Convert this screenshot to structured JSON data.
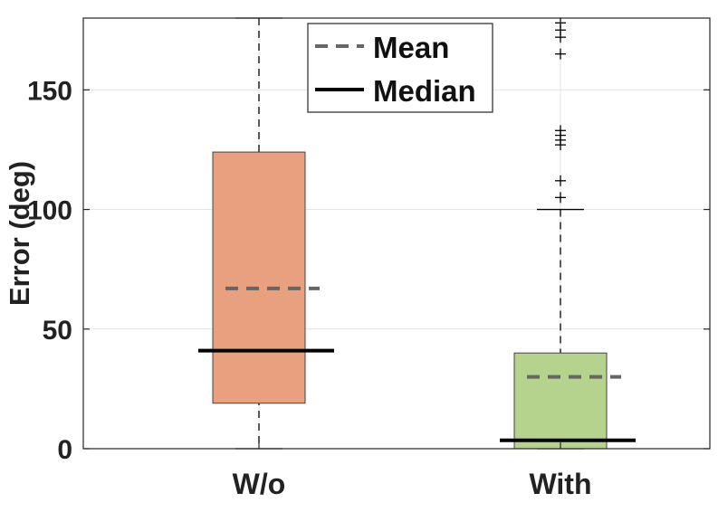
{
  "chart_data": {
    "type": "box",
    "title": "",
    "xlabel": "",
    "ylabel": "Error (deg)",
    "ylim": [
      0,
      180
    ],
    "yticks": [
      0,
      50,
      100,
      150
    ],
    "grid": true,
    "legend_position": "top-center",
    "categories": [
      "W/o",
      "With"
    ],
    "legend": [
      {
        "key": "mean",
        "label": "Mean",
        "style": "dashed",
        "color": "#666666"
      },
      {
        "key": "median",
        "label": "Median",
        "style": "solid",
        "color": "#000000"
      }
    ],
    "boxes": [
      {
        "category": "W/o",
        "color": "#E9A07F",
        "q1": 19,
        "q3": 124,
        "median": 41,
        "mean": 67,
        "whisker_low": 0,
        "whisker_high": 180,
        "outliers": []
      },
      {
        "category": "With",
        "color": "#B5D38D",
        "q1": 0,
        "q3": 40,
        "median": 3.5,
        "mean": 30,
        "whisker_low": 0,
        "whisker_high": 100,
        "outliers": [
          105,
          112,
          127,
          129,
          131,
          133,
          165,
          172,
          175,
          178
        ]
      }
    ]
  }
}
